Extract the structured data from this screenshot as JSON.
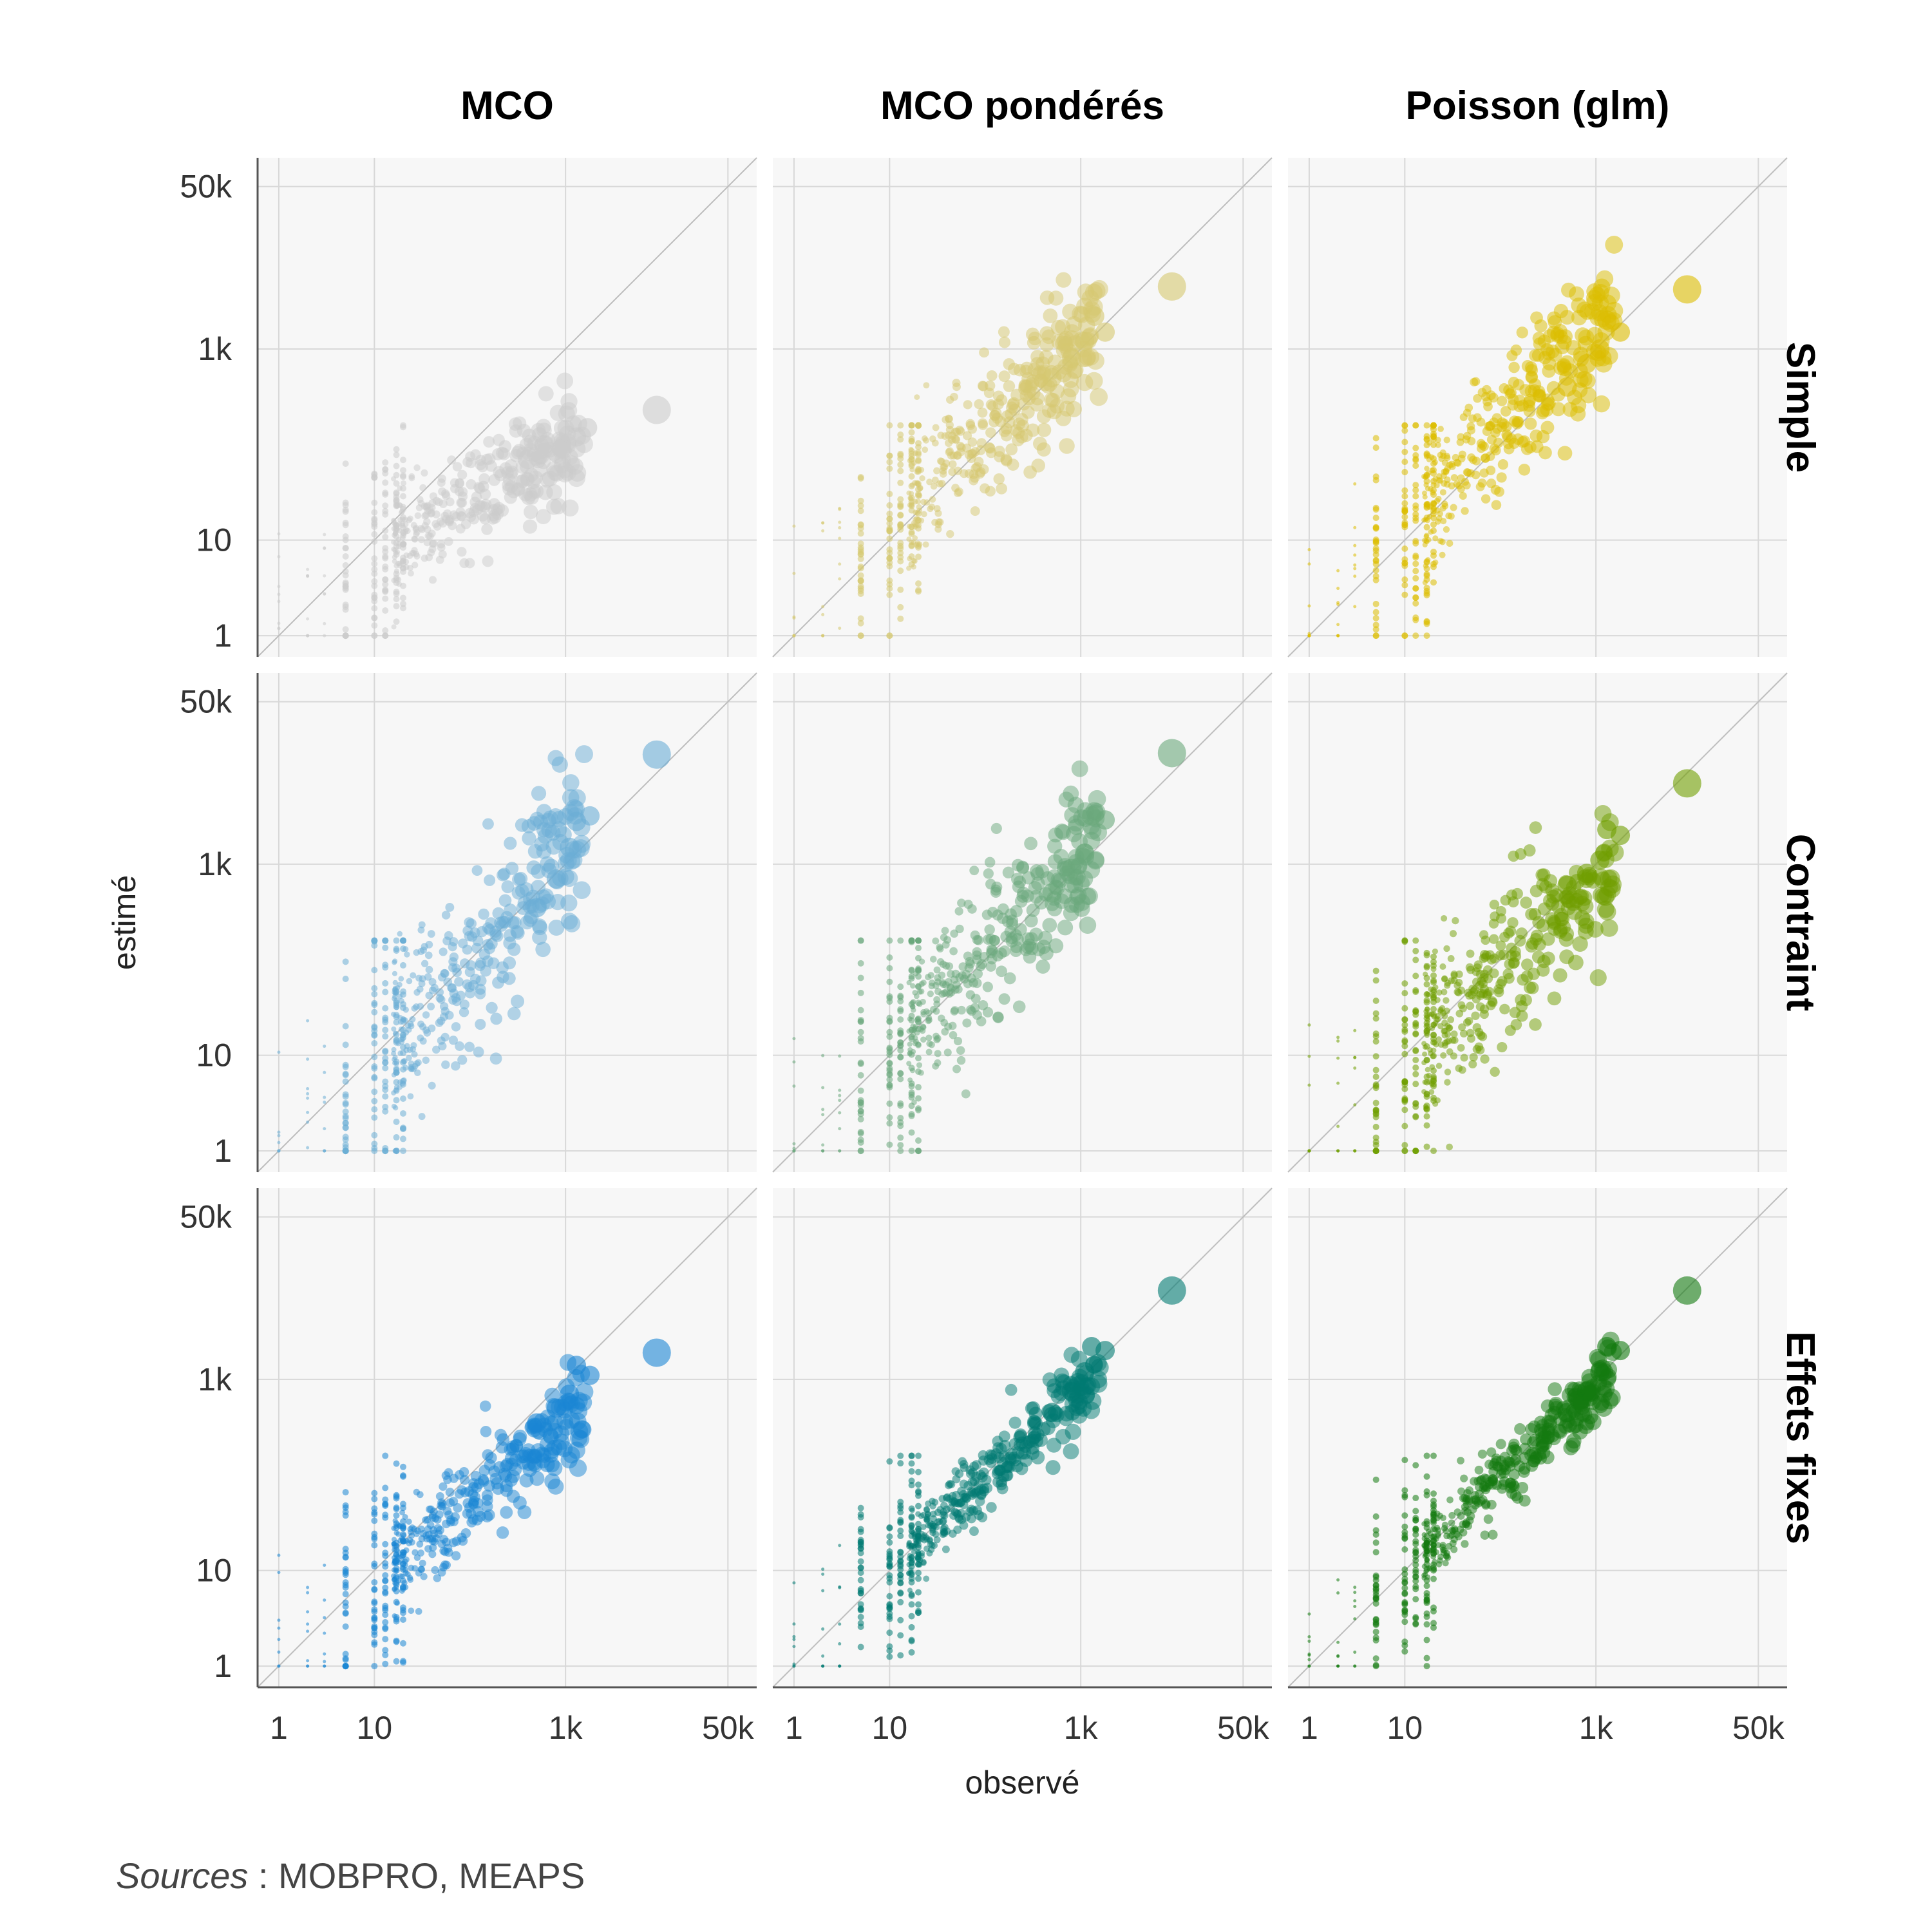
{
  "chart_data": {
    "type": "scatter",
    "facets": {
      "columns": [
        "MCO",
        "MCO pondérés",
        "Poisson (glm)"
      ],
      "rows": [
        "Simple",
        "Contraint",
        "Effets fixes"
      ]
    },
    "xlabel": "observé",
    "ylabel": "estimé",
    "x_scale": "log",
    "y_scale": "log",
    "xlim": [
      0.6,
      100000
    ],
    "ylim": [
      0.6,
      100000
    ],
    "x_ticks": [
      1,
      10,
      1000,
      50000
    ],
    "x_tick_labels": [
      "1",
      "10",
      "1k",
      "50k"
    ],
    "y_ticks": [
      1,
      10,
      1000,
      50000
    ],
    "y_tick_labels": [
      "1",
      "10",
      "1k",
      "50k"
    ],
    "reference_line": "y = x",
    "grid": true,
    "panel_colors": [
      [
        "#cccccc",
        "#d6c870",
        "#dcbd00"
      ],
      [
        "#6baed6",
        "#6aa87c",
        "#6f9e00"
      ],
      [
        "#1a86d4",
        "#007a72",
        "#137a0f"
      ]
    ],
    "panels": [
      {
        "row": "Simple",
        "column": "MCO",
        "highlight": {
          "x": 9000,
          "y": 230
        },
        "top_points": [
          [
            1700,
            150
          ],
          [
            1300,
            120
          ],
          [
            900,
            90
          ],
          [
            600,
            100
          ],
          [
            400,
            70
          ]
        ]
      },
      {
        "row": "Simple",
        "column": "MCO pondérés",
        "highlight": {
          "x": 9000,
          "y": 4500
        },
        "top_points": [
          [
            1800,
            1500
          ],
          [
            1400,
            2200
          ],
          [
            1100,
            1200
          ],
          [
            800,
            800
          ],
          [
            500,
            500
          ]
        ]
      },
      {
        "row": "Simple",
        "column": "Poisson (glm)",
        "highlight": {
          "x": 9000,
          "y": 4200
        },
        "top_points": [
          [
            1800,
            1500
          ],
          [
            1300,
            2000
          ],
          [
            1100,
            1000
          ],
          [
            800,
            700
          ],
          [
            500,
            400
          ]
        ]
      },
      {
        "row": "Contraint",
        "column": "MCO",
        "highlight": {
          "x": 9000,
          "y": 14000
        },
        "top_points": [
          [
            1800,
            3200
          ],
          [
            1300,
            2800
          ],
          [
            1100,
            1500
          ],
          [
            800,
            700
          ],
          [
            500,
            350
          ]
        ]
      },
      {
        "row": "Contraint",
        "column": "MCO pondérés",
        "highlight": {
          "x": 9000,
          "y": 14500
        },
        "top_points": [
          [
            1800,
            2900
          ],
          [
            1300,
            3200
          ],
          [
            1100,
            1300
          ],
          [
            800,
            900
          ],
          [
            500,
            500
          ]
        ]
      },
      {
        "row": "Contraint",
        "column": "Poisson (glm)",
        "highlight": {
          "x": 9000,
          "y": 7000
        },
        "top_points": [
          [
            1800,
            2000
          ],
          [
            1300,
            2300
          ],
          [
            1100,
            1100
          ],
          [
            800,
            800
          ],
          [
            500,
            600
          ]
        ]
      },
      {
        "row": "Effets fixes",
        "column": "MCO",
        "highlight": {
          "x": 9000,
          "y": 1900
        },
        "top_points": [
          [
            1800,
            1100
          ],
          [
            1300,
            1400
          ],
          [
            1100,
            700
          ],
          [
            800,
            500
          ],
          [
            500,
            350
          ]
        ]
      },
      {
        "row": "Effets fixes",
        "column": "MCO pondérés",
        "highlight": {
          "x": 9000,
          "y": 8500
        },
        "top_points": [
          [
            1800,
            2000
          ],
          [
            1300,
            2200
          ],
          [
            1100,
            1200
          ],
          [
            800,
            750
          ],
          [
            500,
            450
          ]
        ]
      },
      {
        "row": "Effets fixes",
        "column": "Poisson (glm)",
        "highlight": {
          "x": 9000,
          "y": 8500
        },
        "top_points": [
          [
            1800,
            2000
          ],
          [
            1300,
            2200
          ],
          [
            1100,
            1200
          ],
          [
            800,
            750
          ],
          [
            500,
            450
          ]
        ]
      }
    ],
    "caption": {
      "source_label": "Sources",
      "source_text": " : MOBPRO, MEAPS"
    }
  }
}
